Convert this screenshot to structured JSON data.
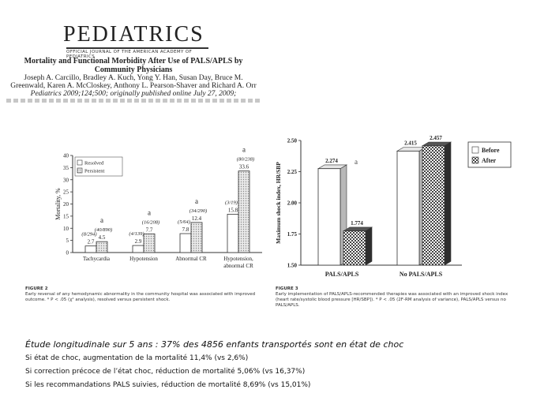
{
  "header": {
    "journal_name": "PEDIATRICS",
    "journal_subtitle": "OFFICIAL JOURNAL OF THE AMERICAN ACADEMY OF PEDIATRICS",
    "paper_title": "Mortality and Functional Morbidity After Use of PALS/APLS by Community Physicians",
    "paper_authors": "Joseph A. Carcillo, Bradley A. Kuch, Yong Y. Han, Susan Day, Bruce M. Greenwald, Karen A. McCloskey, Anthony L. Pearson-Shaver and Richard A. Orr",
    "paper_citation": "Pediatrics 2009;124;500; originally published online July 27, 2009;"
  },
  "figure2": {
    "label": "FIGURE 2",
    "caption": "Early reversal of any hemodynamic abnormality in the community hospital was associated with improved outcome. * P < .05 (χ² analysis), resolved versus persistent shock."
  },
  "figure3": {
    "label": "FIGURE 3",
    "caption": "Early implementation of PALS/APLS-recommended therapies was associated with an improved shock index (heart rate/systolic blood pressure [HR/SBP]). * P < .05 (2F-RM analysis of variance), PALS/APLS versus no PALS/APLS."
  },
  "chart_data": [
    {
      "type": "bar",
      "ylabel": "Mortality, %",
      "ylim": [
        0,
        40
      ],
      "yticks": [
        0,
        5,
        10,
        15,
        20,
        25,
        30,
        35,
        40
      ],
      "categories": [
        "Tachycardia",
        "Hypotension",
        "Abnormal CR",
        "Hypotension,\nabnormal CR"
      ],
      "legend": [
        "Resolved",
        "Persistent"
      ],
      "legend_position": "top-left",
      "series": [
        {
          "name": "Resolved",
          "fill": "#ffffff",
          "values": [
            2.7,
            2.9,
            7.8,
            15.8
          ],
          "fractions": [
            "(8/294)",
            "(4/139)",
            "(5/64)",
            "(3/19)"
          ]
        },
        {
          "name": "Persistent",
          "fill": "#d6d6d6",
          "values": [
            4.5,
            7.7,
            12.4,
            33.6
          ],
          "fractions": [
            "(40/890)",
            "(16/208)",
            "(34/290)",
            "(80/238)"
          ]
        }
      ],
      "significance": [
        "a",
        "a",
        "a",
        "a"
      ]
    },
    {
      "type": "bar",
      "ylabel": "Maximum shock index, HR/SBP",
      "ylim": [
        1.5,
        2.5
      ],
      "yticks": [
        "1.50",
        "1.75",
        "2.00",
        "2.25",
        "2.50"
      ],
      "categories": [
        "PALS/APLS",
        "No PALS/APLS"
      ],
      "legend": [
        "Before",
        "After"
      ],
      "legend_position": "right",
      "series": [
        {
          "name": "Before",
          "fill": "#ffffff",
          "values": [
            2.274,
            2.415
          ]
        },
        {
          "name": "After",
          "fill": "#666666",
          "values": [
            1.774,
            2.457
          ]
        }
      ],
      "significance": "a"
    }
  ],
  "summary": {
    "headline": "Étude longitudinale sur 5 ans : 37% des 4856 enfants transportés sont en état de choc",
    "lines": [
      "Si état de choc, augmentation de la mortalité 11,4% (vs 2,6%)",
      "Si correction précoce de l’état choc, réduction de mortalité 5,06% (vs 16,37%)",
      "Si les recommandations PALS suivies, réduction de mortalité 8,69% (vs 15,01%)"
    ]
  }
}
